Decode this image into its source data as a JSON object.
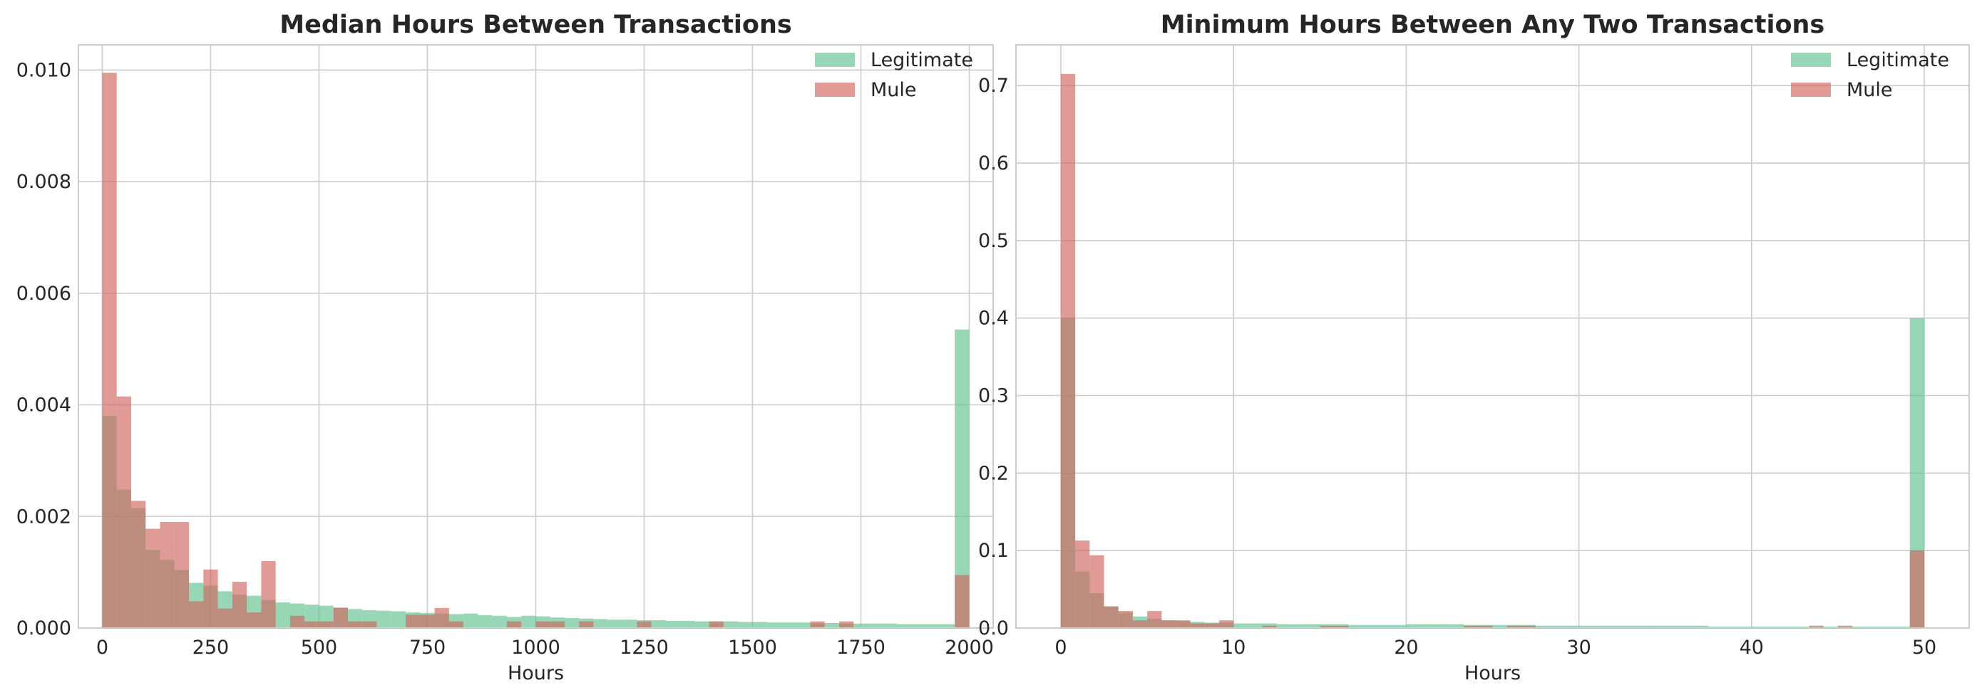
{
  "chart_data": [
    {
      "type": "histogram",
      "title": "Median Hours Between Transactions",
      "xlabel": "Hours",
      "ylabel": "",
      "xlim": [
        -55,
        2055
      ],
      "ylim": [
        0,
        0.01045
      ],
      "xticks": [
        0,
        250,
        500,
        750,
        1000,
        1250,
        1500,
        1750,
        2000
      ],
      "xtick_labels": [
        "0",
        "250",
        "500",
        "750",
        "1000",
        "1250",
        "1500",
        "1750",
        "2000"
      ],
      "yticks": [
        0,
        0.002,
        0.004,
        0.006,
        0.008,
        0.01
      ],
      "ytick_labels": [
        "0.000",
        "0.002",
        "0.004",
        "0.006",
        "0.008",
        "0.010"
      ],
      "grid": true,
      "legend_position": "top-right",
      "bin_start": 0,
      "bin_width": 33.33,
      "series": [
        {
          "name": "Legitimate",
          "color": "#5fc18d",
          "values": [
            0.0038,
            0.00248,
            0.00215,
            0.0014,
            0.00122,
            0.00104,
            0.00081,
            0.00076,
            0.00066,
            0.0006,
            0.00058,
            0.0005,
            0.00046,
            0.00044,
            0.00042,
            0.0004,
            0.00037,
            0.00034,
            0.00032,
            0.00031,
            0.0003,
            0.00028,
            0.00027,
            0.00026,
            0.00025,
            0.00026,
            0.00023,
            0.00022,
            0.0002,
            0.00022,
            0.00021,
            0.00019,
            0.00018,
            0.00017,
            0.00016,
            0.00015,
            0.00015,
            0.00014,
            0.00014,
            0.00013,
            0.00013,
            0.00012,
            0.00012,
            0.00012,
            0.00011,
            0.00011,
            0.0001,
            0.0001,
            0.0001,
            9e-05,
            9e-05,
            8e-05,
            8e-05,
            8e-05,
            8e-05,
            7e-05,
            7e-05,
            7e-05,
            7e-05,
            0.00535
          ]
        },
        {
          "name": "Mule",
          "color": "#d0665d",
          "values": [
            0.00995,
            0.00415,
            0.00228,
            0.00178,
            0.0019,
            0.0019,
            0.00048,
            0.00105,
            0.00035,
            0.00083,
            0.00028,
            0.0012,
            0.0,
            0.00022,
            0.00012,
            0.00012,
            0.00036,
            0.00012,
            0.00012,
            0.0,
            0.0,
            0.00024,
            0.00024,
            0.00036,
            0.00012,
            0.0,
            0.0,
            0.0,
            0.00012,
            0.0,
            0.00012,
            0.00012,
            0.0,
            0.00012,
            0.0,
            0.0,
            0.0,
            0.00012,
            0.0,
            0.0,
            0.0,
            0.0,
            0.00012,
            0.0,
            0.0,
            0.0,
            0.0,
            0.0,
            0.0,
            0.00012,
            0.0,
            0.00012,
            0.0,
            0.0,
            0.0,
            0.0,
            0.0,
            0.0,
            0.0,
            0.00095
          ]
        }
      ]
    },
    {
      "type": "histogram",
      "title": "Minimum Hours Between Any Two Transactions",
      "xlabel": "Hours",
      "ylabel": "",
      "xlim": [
        -2.6,
        52.6
      ],
      "ylim": [
        0,
        0.7525
      ],
      "xticks": [
        0,
        10,
        20,
        30,
        40,
        50
      ],
      "xtick_labels": [
        "0",
        "10",
        "20",
        "30",
        "40",
        "50"
      ],
      "yticks": [
        0,
        0.1,
        0.2,
        0.3,
        0.4,
        0.5,
        0.6,
        0.7
      ],
      "ytick_labels": [
        "0.0",
        "0.1",
        "0.2",
        "0.3",
        "0.4",
        "0.5",
        "0.6",
        "0.7"
      ],
      "grid": true,
      "legend_position": "top-right",
      "bin_start": 0,
      "bin_width": 0.8333,
      "series": [
        {
          "name": "Legitimate",
          "color": "#5fc18d",
          "values": [
            0.4,
            0.073,
            0.045,
            0.028,
            0.02,
            0.015,
            0.012,
            0.01,
            0.009,
            0.008,
            0.007,
            0.007,
            0.006,
            0.006,
            0.006,
            0.005,
            0.005,
            0.005,
            0.005,
            0.005,
            0.004,
            0.004,
            0.004,
            0.004,
            0.005,
            0.005,
            0.005,
            0.005,
            0.004,
            0.004,
            0.004,
            0.004,
            0.004,
            0.003,
            0.003,
            0.003,
            0.003,
            0.003,
            0.003,
            0.003,
            0.003,
            0.003,
            0.003,
            0.003,
            0.003,
            0.002,
            0.002,
            0.002,
            0.002,
            0.002,
            0.002,
            0.002,
            0.002,
            0.002,
            0.002,
            0.002,
            0.002,
            0.002,
            0.002,
            0.4
          ]
        },
        {
          "name": "Mule",
          "color": "#d0665d",
          "values": [
            0.715,
            0.113,
            0.094,
            0.028,
            0.022,
            0.01,
            0.022,
            0.01,
            0.01,
            0.006,
            0.006,
            0.01,
            0.0,
            0.0,
            0.003,
            0.0,
            0.0,
            0.0,
            0.003,
            0.003,
            0.0,
            0.0,
            0.0,
            0.0,
            0.0,
            0.0,
            0.0,
            0.0,
            0.003,
            0.003,
            0.0,
            0.003,
            0.003,
            0.0,
            0.0,
            0.0,
            0.0,
            0.0,
            0.0,
            0.0,
            0.0,
            0.0,
            0.0,
            0.0,
            0.0,
            0.0,
            0.0,
            0.0,
            0.0,
            0.0,
            0.0,
            0.0,
            0.003,
            0.0,
            0.003,
            0.0,
            0.0,
            0.0,
            0.0,
            0.1
          ]
        }
      ]
    }
  ]
}
